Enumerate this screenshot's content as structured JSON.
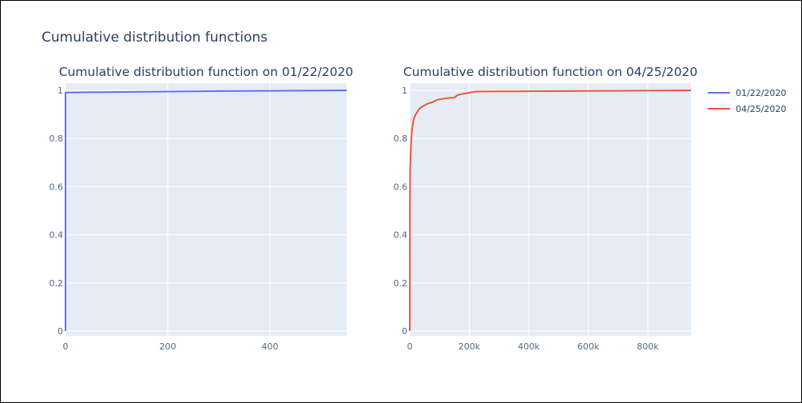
{
  "figure": {
    "title": "Cumulative distribution functions"
  },
  "chart_data": [
    {
      "type": "line",
      "title": "Cumulative distribution function on 01/22/2020",
      "xlabel": "",
      "ylabel": "",
      "xlim": [
        0,
        550
      ],
      "ylim": [
        -0.02,
        1.03
      ],
      "xticks": [
        0,
        200,
        400
      ],
      "xtick_labels": [
        "0",
        "200",
        "400"
      ],
      "yticks": [
        0,
        0.2,
        0.4,
        0.6,
        0.8,
        1
      ],
      "ytick_labels": [
        "0",
        "0.2",
        "0.4",
        "0.6",
        "0.8",
        "1"
      ],
      "grid": true,
      "series": [
        {
          "name": "01/22/2020",
          "color": "#636efa",
          "x": [
            0,
            0,
            0,
            1,
            100,
            200,
            300,
            400,
            550
          ],
          "y": [
            0,
            0.99,
            0.99,
            0.991,
            0.993,
            0.995,
            0.997,
            0.998,
            1.0
          ]
        }
      ]
    },
    {
      "type": "line",
      "title": "Cumulative distribution function on 04/25/2020",
      "xlabel": "",
      "ylabel": "",
      "xlim": [
        0,
        945000
      ],
      "ylim": [
        -0.02,
        1.03
      ],
      "xticks": [
        0,
        200000,
        400000,
        600000,
        800000
      ],
      "xtick_labels": [
        "0",
        "200k",
        "400k",
        "600k",
        "800k"
      ],
      "yticks": [
        0,
        0.2,
        0.4,
        0.6,
        0.8,
        1
      ],
      "ytick_labels": [
        "0",
        "0.2",
        "0.4",
        "0.6",
        "0.8",
        "1"
      ],
      "grid": true,
      "series": [
        {
          "name": "04/25/2020",
          "color": "#ef553b",
          "x": [
            0,
            100,
            500,
            1000,
            2000,
            3000,
            5000,
            7000,
            10000,
            13000,
            16000,
            20000,
            25000,
            30000,
            38000,
            45000,
            60000,
            75000,
            90000,
            110000,
            130000,
            150000,
            160000,
            175000,
            200000,
            220000,
            300000,
            500000,
            700000,
            945000
          ],
          "y": [
            0,
            0.3,
            0.55,
            0.67,
            0.7,
            0.74,
            0.79,
            0.83,
            0.86,
            0.88,
            0.89,
            0.9,
            0.91,
            0.92,
            0.93,
            0.935,
            0.945,
            0.95,
            0.96,
            0.965,
            0.968,
            0.97,
            0.98,
            0.985,
            0.99,
            0.995,
            0.996,
            0.997,
            0.998,
            1.0
          ]
        }
      ]
    }
  ],
  "legend": {
    "placement": "top-right",
    "entries": [
      {
        "name": "01/22/2020",
        "color": "#636efa"
      },
      {
        "name": "04/25/2020",
        "color": "#ef553b"
      }
    ]
  },
  "style": {
    "plot_background": "#e5ecf6",
    "grid_color": "#ffffff"
  }
}
